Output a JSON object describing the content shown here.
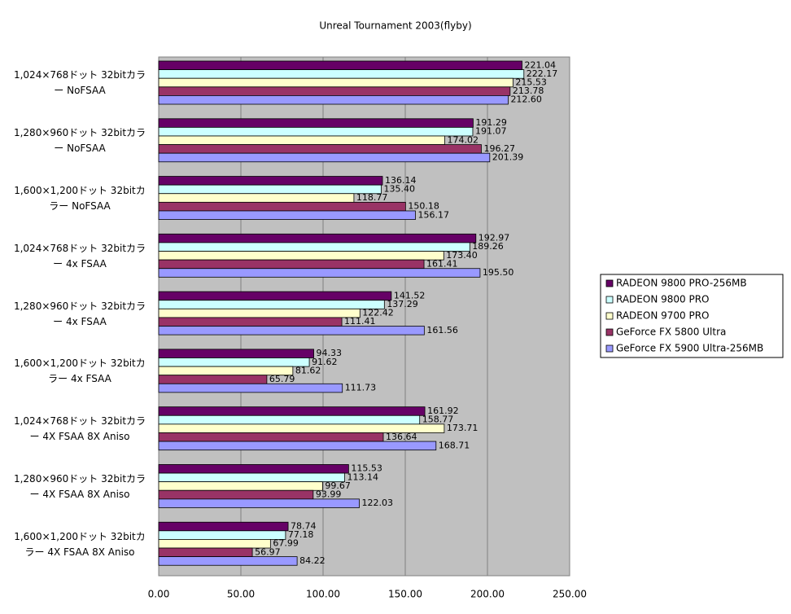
{
  "chart_data": {
    "type": "hbar",
    "title": "Unreal Tournament 2003(flyby)",
    "categories": [
      "1,024×768ドット 32bitカラー NoFSAA",
      "1,280×960ドット 32bitカラー NoFSAA",
      "1,600×1,200ドット 32bitカラー NoFSAA",
      "1,024×768ドット 32bitカラー 4x FSAA",
      "1,280×960ドット 32bitカラー 4x FSAA",
      "1,600×1,200ドット 32bitカラー 4x FSAA",
      "1,024×768ドット 32bitカラー 4X FSAA 8X Aniso",
      "1,280×960ドット 32bitカラー 4X FSAA 8X Aniso",
      "1,600×1,200ドット 32bitカラー 4X FSAA 8X Aniso"
    ],
    "series": [
      {
        "name": "RADEON 9800 PRO-256MB",
        "color": "#660066",
        "values": [
          221.04,
          191.29,
          136.14,
          192.97,
          141.52,
          94.33,
          161.92,
          115.53,
          78.74
        ],
        "value_labels": [
          "221.04",
          "191.29",
          "136.14",
          "192.97",
          "141.52",
          "94.33",
          "161.92",
          "115.53",
          "78.74"
        ]
      },
      {
        "name": "RADEON 9800 PRO",
        "color": "#ccffff",
        "values": [
          222.17,
          191.07,
          135.4,
          189.26,
          137.29,
          91.62,
          158.77,
          113.14,
          77.18
        ],
        "value_labels": [
          "222.17",
          "191.07",
          "135.40",
          "189.26",
          "137.29",
          "91.62",
          "158.77",
          "113.14",
          "77.18"
        ]
      },
      {
        "name": "RADEON 9700 PRO",
        "color": "#ffffcc",
        "values": [
          215.53,
          174.02,
          118.77,
          173.4,
          122.42,
          81.62,
          173.71,
          99.67,
          67.99
        ],
        "value_labels": [
          "215.53",
          "174.02",
          "118.77",
          "173.40",
          "122.42",
          "81.62",
          "173.71",
          "99.67",
          "67.99"
        ]
      },
      {
        "name": "GeForce FX 5800 Ultra",
        "color": "#993366",
        "values": [
          213.78,
          196.27,
          150.18,
          161.41,
          111.41,
          65.79,
          136.64,
          93.99,
          56.97
        ],
        "value_labels": [
          "213.78",
          "196.27",
          "150.18",
          "161.41",
          "111.41",
          "65.79",
          "136.64",
          "93.99",
          "56.97"
        ]
      },
      {
        "name": "GeForce FX 5900 Ultra-256MB",
        "color": "#9999ff",
        "values": [
          212.6,
          201.39,
          156.17,
          195.5,
          161.56,
          111.73,
          168.71,
          122.03,
          84.22
        ],
        "value_labels": [
          "212.60",
          "201.39",
          "156.17",
          "195.50",
          "161.56",
          "111.73",
          "168.71",
          "122.03",
          "84.22"
        ]
      }
    ],
    "xlim": [
      0,
      250
    ],
    "xticks": [
      {
        "value": 0,
        "label": "0.00"
      },
      {
        "value": 50,
        "label": "50.00"
      },
      {
        "value": 100,
        "label": "100.00"
      },
      {
        "value": 150,
        "label": "150.00"
      },
      {
        "value": 200,
        "label": "200.00"
      },
      {
        "value": 250,
        "label": "250.00"
      }
    ],
    "grid": true,
    "plot_background": "#c0c0c0",
    "legend": "right"
  }
}
